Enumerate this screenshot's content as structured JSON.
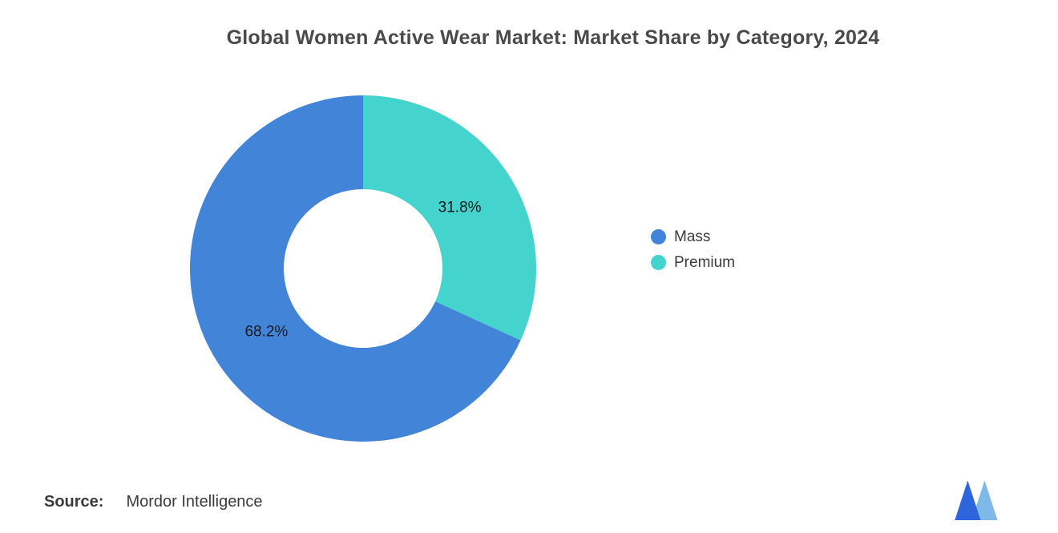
{
  "chart_data": {
    "type": "pie",
    "variant": "donut",
    "title": "Global Women Active Wear Market: Market Share by Category, 2024",
    "categories": [
      "Mass",
      "Premium"
    ],
    "values": [
      68.2,
      31.8
    ],
    "unit": "%",
    "slices": [
      {
        "label": "Mass",
        "value": 68.2,
        "display": "68.2%",
        "color": "#4285D8"
      },
      {
        "label": "Premium",
        "value": 31.8,
        "display": "31.8%",
        "color": "#45D3CE"
      }
    ],
    "legend_position": "right",
    "grid": false
  },
  "footer": {
    "source_label": "Source:",
    "source_value": "Mordor Intelligence"
  },
  "logo": {
    "name": "Mordor Intelligence logo",
    "color_primary": "#2E65DC",
    "color_secondary": "#7EB9EA"
  },
  "styles": {
    "title_color": "#4A4A4A",
    "slice_label_color": "#1A1A1A",
    "legend_text_color": "#3C3C3C"
  }
}
